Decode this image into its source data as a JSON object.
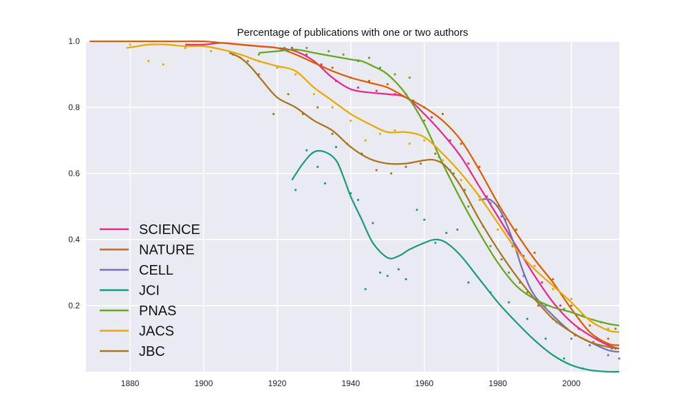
{
  "chart_data": {
    "type": "line",
    "title": "Percentage of publications with one or two authors",
    "xlabel": "",
    "ylabel": "",
    "xlim": [
      1868,
      2013
    ],
    "ylim": [
      0.0,
      1.0
    ],
    "xticks": [
      1880,
      1900,
      1920,
      1940,
      1960,
      1980,
      2000
    ],
    "yticks": [
      0.2,
      0.4,
      0.6,
      0.8,
      1.0
    ],
    "ytick_labels": [
      "0.2",
      "0.4",
      "0.6",
      "0.8",
      "1.0"
    ],
    "grid": true,
    "legend_position": "left",
    "series": [
      {
        "name": "SCIENCE",
        "color": "#e7298a",
        "x": [
          1895,
          1900,
          1905,
          1910,
          1915,
          1920,
          1925,
          1930,
          1935,
          1940,
          1945,
          1950,
          1955,
          1960,
          1965,
          1970,
          1975,
          1980,
          1985,
          1990,
          1995,
          2000,
          2005,
          2010,
          2013
        ],
        "y": [
          0.99,
          0.99,
          0.995,
          0.99,
          0.985,
          0.98,
          0.97,
          0.94,
          0.89,
          0.855,
          0.845,
          0.84,
          0.83,
          0.78,
          0.72,
          0.65,
          0.56,
          0.47,
          0.38,
          0.29,
          0.21,
          0.15,
          0.11,
          0.08,
          0.07
        ],
        "dots": [
          [
            1924,
            0.98
          ],
          [
            1928,
            0.96
          ],
          [
            1932,
            0.93
          ],
          [
            1936,
            0.88
          ],
          [
            1942,
            0.86
          ],
          [
            1947,
            0.85
          ],
          [
            1952,
            0.84
          ],
          [
            1957,
            0.82
          ],
          [
            1962,
            0.77
          ],
          [
            1967,
            0.7
          ],
          [
            1972,
            0.63
          ],
          [
            1977,
            0.53
          ],
          [
            1982,
            0.46
          ],
          [
            1987,
            0.35
          ],
          [
            1992,
            0.27
          ],
          [
            1997,
            0.2
          ],
          [
            2002,
            0.13
          ],
          [
            2007,
            0.1
          ],
          [
            2012,
            0.07
          ]
        ]
      },
      {
        "name": "NATURE",
        "color": "#d95f02",
        "x": [
          1869,
          1875,
          1880,
          1885,
          1890,
          1895,
          1900,
          1905,
          1910,
          1915,
          1920,
          1925,
          1930,
          1935,
          1940,
          1945,
          1950,
          1955,
          1960,
          1965,
          1970,
          1975,
          1980,
          1985,
          1990,
          1995,
          2000,
          2005,
          2010,
          2013
        ],
        "y": [
          1.0,
          1.0,
          1.0,
          1.0,
          1.0,
          1.0,
          1.0,
          0.995,
          0.99,
          0.985,
          0.98,
          0.96,
          0.935,
          0.91,
          0.89,
          0.875,
          0.86,
          0.83,
          0.8,
          0.76,
          0.7,
          0.61,
          0.51,
          0.42,
          0.34,
          0.27,
          0.19,
          0.12,
          0.085,
          0.08
        ],
        "dots": [
          [
            1925,
            0.97
          ],
          [
            1930,
            0.94
          ],
          [
            1935,
            0.92
          ],
          [
            1940,
            0.89
          ],
          [
            1945,
            0.88
          ],
          [
            1950,
            0.87
          ],
          [
            1955,
            0.84
          ],
          [
            1960,
            0.8
          ],
          [
            1965,
            0.78
          ],
          [
            1970,
            0.69
          ],
          [
            1975,
            0.62
          ],
          [
            1980,
            0.5
          ],
          [
            1985,
            0.43
          ],
          [
            1990,
            0.36
          ],
          [
            1995,
            0.28
          ],
          [
            2000,
            0.2
          ],
          [
            2005,
            0.14
          ],
          [
            2010,
            0.1
          ]
        ]
      },
      {
        "name": "CELL",
        "color": "#7570b3",
        "x": [
          1975,
          1978,
          1981,
          1984,
          1987,
          1990,
          1995,
          2000,
          2005,
          2010,
          2013
        ],
        "y": [
          0.52,
          0.52,
          0.48,
          0.4,
          0.3,
          0.23,
          0.17,
          0.12,
          0.09,
          0.065,
          0.06
        ],
        "dots": [
          [
            1975,
            0.53
          ],
          [
            1978,
            0.51
          ],
          [
            1981,
            0.47
          ],
          [
            1984,
            0.38
          ],
          [
            1987,
            0.29
          ],
          [
            1990,
            0.22
          ],
          [
            1995,
            0.16
          ],
          [
            2000,
            0.1
          ],
          [
            2005,
            0.08
          ],
          [
            2010,
            0.05
          ],
          [
            2013,
            0.04
          ]
        ]
      },
      {
        "name": "JCI",
        "color": "#1b9e77",
        "x": [
          1924,
          1927,
          1930,
          1933,
          1936,
          1938,
          1940,
          1943,
          1946,
          1950,
          1953,
          1956,
          1960,
          1963,
          1966,
          1970,
          1975,
          1980,
          1985,
          1990,
          1995,
          2000,
          2005,
          2010,
          2013
        ],
        "y": [
          0.58,
          0.63,
          0.665,
          0.665,
          0.64,
          0.59,
          0.53,
          0.46,
          0.39,
          0.345,
          0.35,
          0.37,
          0.39,
          0.4,
          0.39,
          0.35,
          0.28,
          0.21,
          0.15,
          0.095,
          0.05,
          0.02,
          0.005,
          0.0,
          0.0
        ],
        "dots": [
          [
            1925,
            0.55
          ],
          [
            1928,
            0.67
          ],
          [
            1931,
            0.62
          ],
          [
            1933,
            0.57
          ],
          [
            1936,
            0.68
          ],
          [
            1940,
            0.54
          ],
          [
            1942,
            0.52
          ],
          [
            1944,
            0.25
          ],
          [
            1946,
            0.45
          ],
          [
            1948,
            0.3
          ],
          [
            1950,
            0.29
          ],
          [
            1953,
            0.31
          ],
          [
            1955,
            0.28
          ],
          [
            1958,
            0.49
          ],
          [
            1960,
            0.46
          ],
          [
            1963,
            0.39
          ],
          [
            1966,
            0.42
          ],
          [
            1969,
            0.43
          ],
          [
            1972,
            0.27
          ],
          [
            1978,
            0.24
          ],
          [
            1983,
            0.21
          ],
          [
            1988,
            0.16
          ],
          [
            1993,
            0.1
          ],
          [
            1998,
            0.04
          ],
          [
            2003,
            0.01
          ]
        ]
      },
      {
        "name": "PNAS",
        "color": "#66a61e",
        "x": [
          1915,
          1920,
          1925,
          1930,
          1935,
          1940,
          1943,
          1946,
          1950,
          1955,
          1960,
          1965,
          1970,
          1975,
          1980,
          1985,
          1990,
          1995,
          2000,
          2005,
          2010,
          2013
        ],
        "y": [
          0.965,
          0.97,
          0.975,
          0.965,
          0.955,
          0.945,
          0.94,
          0.925,
          0.9,
          0.84,
          0.75,
          0.63,
          0.52,
          0.42,
          0.33,
          0.26,
          0.22,
          0.195,
          0.18,
          0.16,
          0.145,
          0.14
        ],
        "dots": [
          [
            1915,
            0.96
          ],
          [
            1922,
            0.98
          ],
          [
            1928,
            0.98
          ],
          [
            1934,
            0.97
          ],
          [
            1938,
            0.96
          ],
          [
            1942,
            0.94
          ],
          [
            1945,
            0.95
          ],
          [
            1948,
            0.92
          ],
          [
            1952,
            0.9
          ],
          [
            1956,
            0.89
          ],
          [
            1960,
            0.76
          ],
          [
            1964,
            0.65
          ],
          [
            1968,
            0.6
          ],
          [
            1972,
            0.5
          ],
          [
            1978,
            0.38
          ],
          [
            1983,
            0.3
          ],
          [
            1988,
            0.24
          ],
          [
            1993,
            0.2
          ],
          [
            1998,
            0.19
          ],
          [
            2003,
            0.17
          ],
          [
            2008,
            0.15
          ],
          [
            2012,
            0.13
          ]
        ]
      },
      {
        "name": "JACS",
        "color": "#e6ab02",
        "x": [
          1879,
          1882,
          1885,
          1890,
          1895,
          1900,
          1905,
          1910,
          1915,
          1920,
          1925,
          1930,
          1935,
          1940,
          1945,
          1950,
          1955,
          1960,
          1965,
          1970,
          1975,
          1980,
          1985,
          1990,
          1995,
          2000,
          2005,
          2010,
          2013
        ],
        "y": [
          0.98,
          0.985,
          0.99,
          0.99,
          0.985,
          0.985,
          0.975,
          0.96,
          0.94,
          0.925,
          0.91,
          0.86,
          0.82,
          0.78,
          0.75,
          0.725,
          0.725,
          0.71,
          0.66,
          0.6,
          0.53,
          0.45,
          0.37,
          0.31,
          0.26,
          0.21,
          0.155,
          0.125,
          0.12
        ],
        "dots": [
          [
            1880,
            0.99
          ],
          [
            1885,
            0.94
          ],
          [
            1889,
            0.93
          ],
          [
            1895,
            0.98
          ],
          [
            1902,
            0.97
          ],
          [
            1910,
            0.95
          ],
          [
            1915,
            0.94
          ],
          [
            1920,
            0.92
          ],
          [
            1925,
            0.9
          ],
          [
            1930,
            0.84
          ],
          [
            1935,
            0.8
          ],
          [
            1940,
            0.76
          ],
          [
            1944,
            0.7
          ],
          [
            1948,
            0.72
          ],
          [
            1952,
            0.73
          ],
          [
            1956,
            0.69
          ],
          [
            1960,
            0.7
          ],
          [
            1965,
            0.64
          ],
          [
            1970,
            0.58
          ],
          [
            1975,
            0.52
          ],
          [
            1980,
            0.43
          ],
          [
            1985,
            0.37
          ],
          [
            1990,
            0.32
          ],
          [
            1995,
            0.25
          ],
          [
            2000,
            0.22
          ],
          [
            2005,
            0.16
          ],
          [
            2010,
            0.13
          ]
        ]
      },
      {
        "name": "JBC",
        "color": "#a6761d",
        "x": [
          1907,
          1910,
          1913,
          1916,
          1920,
          1925,
          1930,
          1935,
          1940,
          1945,
          1950,
          1955,
          1960,
          1963,
          1966,
          1970,
          1975,
          1980,
          1985,
          1990,
          1995,
          2000,
          2005,
          2010,
          2013
        ],
        "y": [
          0.965,
          0.95,
          0.92,
          0.88,
          0.83,
          0.8,
          0.76,
          0.73,
          0.68,
          0.645,
          0.63,
          0.63,
          0.64,
          0.64,
          0.62,
          0.56,
          0.46,
          0.37,
          0.29,
          0.22,
          0.16,
          0.12,
          0.09,
          0.075,
          0.07
        ],
        "dots": [
          [
            1908,
            0.96
          ],
          [
            1912,
            0.94
          ],
          [
            1915,
            0.9
          ],
          [
            1919,
            0.78
          ],
          [
            1923,
            0.84
          ],
          [
            1927,
            0.78
          ],
          [
            1931,
            0.8
          ],
          [
            1935,
            0.72
          ],
          [
            1939,
            0.69
          ],
          [
            1943,
            0.66
          ],
          [
            1947,
            0.61
          ],
          [
            1951,
            0.6
          ],
          [
            1955,
            0.62
          ],
          [
            1959,
            0.63
          ],
          [
            1963,
            0.66
          ],
          [
            1967,
            0.61
          ],
          [
            1971,
            0.55
          ],
          [
            1976,
            0.44
          ],
          [
            1981,
            0.34
          ],
          [
            1986,
            0.27
          ],
          [
            1991,
            0.2
          ],
          [
            1996,
            0.15
          ],
          [
            2001,
            0.11
          ],
          [
            2006,
            0.09
          ],
          [
            2011,
            0.07
          ]
        ]
      }
    ]
  }
}
